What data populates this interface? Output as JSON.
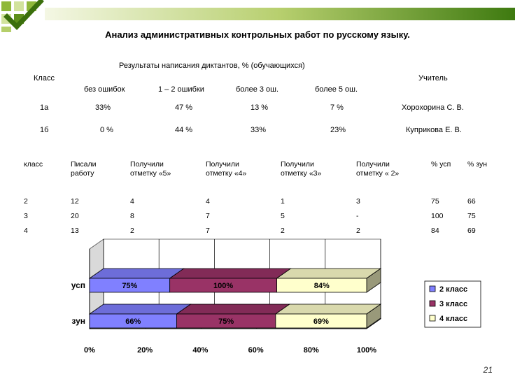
{
  "slide": {
    "title": "Анализ административных контрольных работ по русскому языку.",
    "page_number": "21"
  },
  "table1": {
    "header_group": "Результаты написания диктантов, % (обучающихся)",
    "col_class": "Класс",
    "col_teacher": "Учитель",
    "subcols": [
      "без ошибок",
      "1 – 2 ошибки",
      "более 3 ош.",
      "более 5 ош."
    ],
    "rows": [
      {
        "class": "1а",
        "values": [
          "33%",
          "47 %",
          "13 %",
          "7 %"
        ],
        "teacher": "Хорохорина С. В."
      },
      {
        "class": "1б",
        "values": [
          "0 %",
          "44 %",
          "33%",
          "23%"
        ],
        "teacher": "Куприкова Е. В."
      }
    ]
  },
  "table2": {
    "headers": [
      "класс",
      "Писали работу",
      "Получили отметку «5»",
      "Получили отметку «4»",
      "Получили отметку «3»",
      "Получили отметку « 2»",
      "% усп",
      "% зун"
    ],
    "rows": [
      [
        "2",
        "12",
        "4",
        "4",
        "1",
        "3",
        "75",
        "66"
      ],
      [
        "3",
        "20",
        "8",
        "7",
        "5",
        "-",
        "100",
        "75"
      ],
      [
        "4",
        "13",
        "2",
        "7",
        "2",
        "2",
        "84",
        "69"
      ]
    ]
  },
  "chart_data": {
    "type": "bar",
    "orientation": "horizontal",
    "stacked": "percent",
    "categories": [
      "усп",
      "зун"
    ],
    "series": [
      {
        "name": "2 класс",
        "values": [
          75,
          66
        ],
        "labels": [
          "75%",
          "66%"
        ],
        "color": "#8080ff"
      },
      {
        "name": "3 класс",
        "values": [
          100,
          75
        ],
        "labels": [
          "100%",
          "75%"
        ],
        "color": "#993366"
      },
      {
        "name": "4 класс",
        "values": [
          84,
          69
        ],
        "labels": [
          "84%",
          "69%"
        ],
        "color": "#ffffcc"
      }
    ],
    "x_ticks": [
      "0%",
      "20%",
      "40%",
      "60%",
      "80%",
      "100%"
    ],
    "xlim": [
      0,
      100
    ],
    "legend": "right",
    "grid": true
  }
}
